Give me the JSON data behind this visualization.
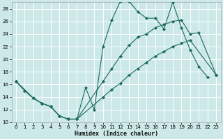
{
  "xlabel": "Humidex (Indice chaleur)",
  "bg_color": "#cce8e8",
  "grid_color": "#ffffff",
  "line_color": "#1a6b5a",
  "xlim": [
    -0.5,
    23.5
  ],
  "ylim": [
    10,
    29
  ],
  "xticks": [
    0,
    1,
    2,
    3,
    4,
    5,
    6,
    7,
    8,
    9,
    10,
    11,
    12,
    13,
    14,
    15,
    16,
    17,
    18,
    19,
    20,
    21,
    22,
    23
  ],
  "yticks": [
    10,
    12,
    14,
    16,
    18,
    20,
    22,
    24,
    26,
    28
  ],
  "line1_x": [
    0,
    1,
    2,
    3,
    4,
    5,
    6,
    7,
    8,
    9,
    10,
    11,
    12,
    13,
    14,
    15,
    16,
    17,
    18,
    19,
    20,
    21,
    22
  ],
  "line1_y": [
    16.5,
    15.0,
    13.8,
    13.0,
    12.5,
    11.0,
    10.5,
    10.5,
    15.5,
    12.0,
    22.0,
    26.2,
    29.2,
    29.2,
    27.5,
    26.5,
    26.5,
    24.8,
    29.0,
    25.0,
    21.5,
    18.8,
    17.2
  ],
  "line2_x": [
    0,
    2,
    3,
    4,
    5,
    6,
    7,
    10,
    11,
    12,
    13,
    14,
    15,
    16,
    17,
    18,
    19,
    20,
    21,
    23
  ],
  "line2_y": [
    16.5,
    13.8,
    13.0,
    12.5,
    11.0,
    10.5,
    10.5,
    16.5,
    18.5,
    20.5,
    22.2,
    23.5,
    24.0,
    25.0,
    25.5,
    26.0,
    26.2,
    24.0,
    24.2,
    17.5
  ],
  "line3_x": [
    0,
    2,
    3,
    4,
    5,
    6,
    7,
    10,
    11,
    12,
    13,
    14,
    15,
    16,
    17,
    18,
    19,
    20,
    23
  ],
  "line3_y": [
    16.5,
    13.8,
    13.0,
    12.5,
    11.0,
    10.5,
    10.5,
    14.0,
    15.2,
    16.2,
    17.5,
    18.5,
    19.5,
    20.5,
    21.2,
    22.0,
    22.5,
    23.0,
    17.5
  ]
}
